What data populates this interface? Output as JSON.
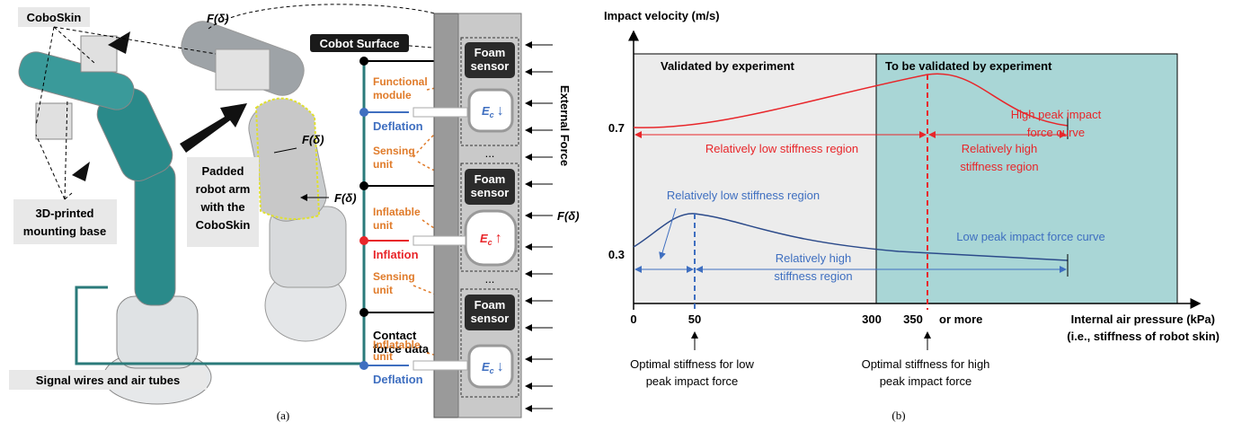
{
  "panel_a": {
    "coboskin": "CoboSkin",
    "forces": [
      "F(δ)",
      "F(δ)",
      "F(δ)",
      "F(δ)"
    ],
    "cobot_surface": "Cobot Surface",
    "foam_sensors": [
      "Foam\nsensor",
      "Foam\nsensor",
      "Foam\nsensor"
    ],
    "functional_module": [
      "Functional",
      "module"
    ],
    "deflation": [
      "Deflation",
      "Deflation"
    ],
    "inflation": "Inflation",
    "ec": [
      "E",
      "E",
      "E"
    ],
    "ec_sub": [
      "c",
      "c",
      "c"
    ],
    "ec_arrows": [
      "↓",
      "↑",
      "↓"
    ],
    "sensing_units": [
      [
        "Sensing",
        "unit"
      ],
      [
        "Sensing",
        "unit"
      ]
    ],
    "inflatable_units": [
      [
        "Inflatable",
        "unit"
      ],
      [
        "Inflatable",
        "unit"
      ]
    ],
    "ellipsis": [
      "...",
      "..."
    ],
    "external_force": "External Force",
    "padded_arm": [
      "Padded",
      "robot arm",
      "with the",
      "CoboSkin"
    ],
    "mounting_base": [
      "3D-printed",
      "mounting base"
    ],
    "contact_force": [
      "Contact",
      "force data"
    ],
    "signal_wires": "Signal wires and air tubes",
    "caption": "(a)"
  },
  "panel_b": {
    "y_axis_label": "Impact velocity (m/s)",
    "validated": "Validated by experiment",
    "to_be_validated": "To be validated by experiment",
    "high_curve": [
      "High peak impact",
      "force curve"
    ],
    "low_curve": "Low peak impact force curve",
    "y_ticks": [
      "0.7",
      "0.3"
    ],
    "x_ticks": [
      "0",
      "50",
      "300",
      "350",
      "or more"
    ],
    "red_low_region": "Relatively low stiffness region",
    "red_high_region": [
      "Relatively high",
      "stiffness region"
    ],
    "blue_low_region": "Relatively low stiffness region",
    "blue_high_region": [
      "Relatively high",
      "stiffness region"
    ],
    "x_axis_label": [
      "Internal air pressure (kPa)",
      "(i.e., stiffness of robot skin)"
    ],
    "optimal_low": [
      "Optimal stiffness for low",
      "peak impact force"
    ],
    "optimal_high": [
      "Optimal stiffness for high",
      "peak impact force"
    ],
    "caption": "(b)"
  }
}
